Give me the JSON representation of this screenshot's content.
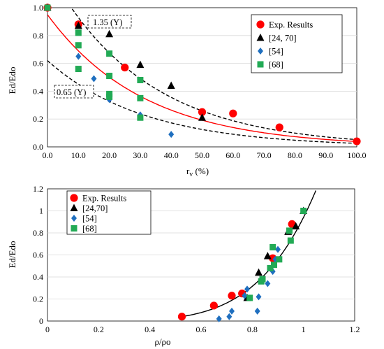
{
  "colors": {
    "exp": "#ff0000",
    "ref_24_70": "#000000",
    "ref_54": "#1f6fbf",
    "ref_68": "#22aa55",
    "fit": "#ff0000",
    "grid": "#d9d9d9"
  },
  "chart_data": [
    {
      "type": "scatter",
      "xlabel_main": "r",
      "xlabel_sub": "v",
      "xlabel_tail": " (%)",
      "ylabel": "Ed/Edo",
      "xlim": [
        0,
        100
      ],
      "ylim": [
        0,
        1.0
      ],
      "xticks": [
        "0.0",
        "10.0",
        "20.0",
        "30.0",
        "40.0",
        "50.0",
        "60.0",
        "70.0",
        "80.0",
        "90.0",
        "100.0"
      ],
      "yticks": [
        "0.0",
        "0.2",
        "0.4",
        "0.6",
        "0.8",
        "1.0"
      ],
      "grid": "horizontal",
      "legend_position": "top-right",
      "series": [
        {
          "name": "Exp. Results",
          "marker": "circle",
          "points": [
            [
              0,
              1.0
            ],
            [
              10,
              0.88
            ],
            [
              25,
              0.57
            ],
            [
              50,
              0.25
            ],
            [
              60,
              0.24
            ],
            [
              75,
              0.14
            ],
            [
              100,
              0.04
            ]
          ]
        },
        {
          "name": "[24, 70]",
          "marker": "triangle",
          "points": [
            [
              0,
              1.0
            ],
            [
              10,
              0.87
            ],
            [
              20,
              0.81
            ],
            [
              30,
              0.59
            ],
            [
              40,
              0.44
            ],
            [
              50,
              0.21
            ]
          ]
        },
        {
          "name": "[54]",
          "marker": "diamond",
          "points": [
            [
              0,
              1.0
            ],
            [
              10,
              0.65
            ],
            [
              15,
              0.49
            ],
            [
              20,
              0.34
            ],
            [
              30,
              0.23
            ],
            [
              40,
              0.09
            ]
          ]
        },
        {
          "name": "[68]",
          "marker": "square",
          "points": [
            [
              0,
              1.0
            ],
            [
              10,
              0.82
            ],
            [
              10,
              0.73
            ],
            [
              10,
              0.56
            ],
            [
              20,
              0.67
            ],
            [
              20,
              0.51
            ],
            [
              20,
              0.38
            ],
            [
              20,
              0.36
            ],
            [
              30,
              0.48
            ],
            [
              30,
              0.35
            ],
            [
              30,
              0.21
            ]
          ]
        }
      ],
      "curves": [
        {
          "style": "solid",
          "label": "",
          "fn": "exp",
          "a": 0.95,
          "k": 0.032
        },
        {
          "style": "dashed",
          "label": "1.35 (Y)",
          "fn": "exp",
          "a": 1.28,
          "k": 0.032
        },
        {
          "style": "dashed",
          "label": "0.65 (Y)",
          "fn": "exp",
          "a": 0.62,
          "k": 0.032
        }
      ]
    },
    {
      "type": "scatter",
      "xlabel": "ρ/ρo",
      "ylabel": "Ed/Edo",
      "xlim": [
        0,
        1.2
      ],
      "ylim": [
        0,
        1.2
      ],
      "xticks": [
        "0",
        "0.2",
        "0.4",
        "0.6",
        "0.8",
        "1",
        "1.2"
      ],
      "yticks": [
        "0",
        "0.2",
        "0.4",
        "0.6",
        "0.8",
        "1",
        "1.2"
      ],
      "grid": "horizontal",
      "legend_position": "top-left",
      "series": [
        {
          "name": "Exp. Results",
          "marker": "circle",
          "points": [
            [
              0.525,
              0.04
            ],
            [
              0.65,
              0.14
            ],
            [
              0.72,
              0.23
            ],
            [
              0.76,
              0.25
            ],
            [
              0.88,
              0.57
            ],
            [
              0.955,
              0.88
            ]
          ]
        },
        {
          "name": "[24,70]",
          "marker": "triangle",
          "points": [
            [
              0.78,
              0.21
            ],
            [
              0.825,
              0.44
            ],
            [
              0.86,
              0.59
            ],
            [
              0.94,
              0.81
            ],
            [
              0.97,
              0.86
            ],
            [
              1.0,
              1.0
            ]
          ]
        },
        {
          "name": "[54]",
          "marker": "diamond",
          "points": [
            [
              0.67,
              0.02
            ],
            [
              0.71,
              0.04
            ],
            [
              0.72,
              0.09
            ],
            [
              0.77,
              0.23
            ],
            [
              0.78,
              0.29
            ],
            [
              0.82,
              0.09
            ],
            [
              0.825,
              0.22
            ],
            [
              0.86,
              0.34
            ],
            [
              0.88,
              0.45
            ],
            [
              0.89,
              0.56
            ],
            [
              0.9,
              0.65
            ],
            [
              1.0,
              1.0
            ]
          ]
        },
        {
          "name": "[68]",
          "marker": "square",
          "points": [
            [
              0.79,
              0.21
            ],
            [
              0.835,
              0.36
            ],
            [
              0.84,
              0.38
            ],
            [
              0.87,
              0.48
            ],
            [
              0.885,
              0.51
            ],
            [
              0.88,
              0.67
            ],
            [
              0.905,
              0.56
            ],
            [
              0.95,
              0.73
            ],
            [
              0.945,
              0.82
            ],
            [
              1.0,
              1.0
            ]
          ]
        }
      ],
      "curves": [
        {
          "style": "solid",
          "color": "#000000",
          "fn": "pow",
          "a": 0.04,
          "x0": 0.525,
          "exp": 4.9
        }
      ]
    }
  ]
}
